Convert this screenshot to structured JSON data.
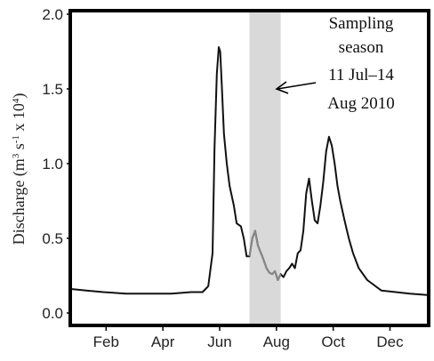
{
  "chart_data": {
    "type": "line",
    "ylabel_main": "Discharge (m",
    "ylabel_sup1": "3",
    "ylabel_mid": " s",
    "ylabel_sup2": "-1",
    "ylabel_mid2": " x 10",
    "ylabel_sup3": "4",
    "ylabel_end": ")",
    "ylim": [
      0,
      2.0
    ],
    "xlim_month": [
      0.1,
      12.6
    ],
    "y_ticks": [
      {
        "value": 0.0,
        "label": "0.0"
      },
      {
        "value": 0.5,
        "label": "0.5"
      },
      {
        "value": 1.0,
        "label": "1.0"
      },
      {
        "value": 1.5,
        "label": "1.5"
      },
      {
        "value": 2.0,
        "label": "2.0"
      }
    ],
    "x_ticks": [
      {
        "month": 1.3,
        "label": "Feb"
      },
      {
        "month": 3.3,
        "label": "Apr"
      },
      {
        "month": 5.3,
        "label": "Jun"
      },
      {
        "month": 7.3,
        "label": "Aug"
      },
      {
        "month": 9.3,
        "label": "Oct"
      },
      {
        "month": 11.3,
        "label": "Dec"
      }
    ],
    "shaded_region": {
      "start": 6.35,
      "end": 7.45,
      "color": "#d9d9d9"
    },
    "annotation": {
      "lines": [
        "Sampling",
        "season",
        "11 Jul–14",
        "Aug 2010"
      ]
    },
    "line_color": "#111111",
    "highlight_color": "#888888",
    "series": [
      {
        "x": [
          0.1,
          0.6,
          1.2,
          2.0,
          2.8,
          3.6,
          4.3,
          4.7,
          4.9,
          5.05,
          5.12,
          5.2,
          5.27,
          5.32,
          5.37,
          5.45,
          5.55,
          5.65,
          5.8,
          5.9,
          6.05,
          6.15,
          6.25,
          6.35,
          6.45,
          6.55,
          6.65,
          6.8,
          6.95,
          7.05,
          7.15,
          7.25,
          7.35,
          7.45,
          7.55,
          7.65,
          7.75,
          7.85,
          7.95,
          8.05,
          8.15,
          8.25,
          8.35,
          8.45,
          8.55,
          8.65,
          8.75,
          8.85,
          8.95,
          9.05,
          9.15,
          9.25,
          9.35,
          9.45,
          9.55,
          9.7,
          9.85,
          10.0,
          10.2,
          10.5,
          11.0,
          11.5,
          12.0,
          12.6
        ],
        "y": [
          0.16,
          0.15,
          0.14,
          0.13,
          0.13,
          0.13,
          0.14,
          0.14,
          0.18,
          0.4,
          1.1,
          1.6,
          1.78,
          1.75,
          1.55,
          1.2,
          1.0,
          0.85,
          0.72,
          0.6,
          0.58,
          0.5,
          0.38,
          0.38,
          0.5,
          0.55,
          0.45,
          0.38,
          0.3,
          0.27,
          0.26,
          0.28,
          0.22,
          0.26,
          0.24,
          0.28,
          0.3,
          0.33,
          0.3,
          0.4,
          0.42,
          0.55,
          0.8,
          0.9,
          0.75,
          0.62,
          0.6,
          0.72,
          0.88,
          1.08,
          1.18,
          1.12,
          1.0,
          0.85,
          0.75,
          0.62,
          0.5,
          0.4,
          0.3,
          0.22,
          0.15,
          0.14,
          0.13,
          0.12
        ]
      }
    ]
  }
}
